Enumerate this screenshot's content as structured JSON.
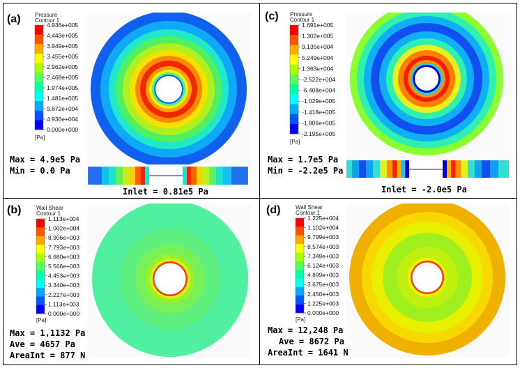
{
  "figure": {
    "panels": [
      {
        "label": "(a)",
        "legend_title": [
          "Pressure",
          "Contour 1"
        ],
        "legend_unit": "[Pa]",
        "legend_ticks": [
          "4.936e+005",
          "4.443e+005",
          "3.949e+005",
          "3.455e+005",
          "2.962e+005",
          "2.468e+005",
          "1.974e+005",
          "1.481e+005",
          "9.872e+004",
          "4.936e+004",
          "0.000e+000"
        ],
        "stats": [
          "Max = 4.9e5 Pa",
          "Min = 0.0 Pa"
        ],
        "inlet": "Inlet = 0.81e5 Pa"
      },
      {
        "label": "(c)",
        "legend_title": [
          "Pressure",
          "Contour 1"
        ],
        "legend_unit": "[Pa]",
        "legend_ticks": [
          "1.691e+005",
          "1.302e+005",
          "9.135e+004",
          "5.249e+004",
          "1.363e+004",
          "-2.522e+004",
          "-6.408e+004",
          "-1.029e+005",
          "-1.418e+005",
          "-1.806e+005",
          "-2.195e+005"
        ],
        "stats": [
          "Max = 1.7e5 Pa",
          "Min = -2.2e5 Pa"
        ],
        "inlet": "Inlet = -2.0e5 Pa"
      },
      {
        "label": "(b)",
        "legend_title": [
          "Wall Shear",
          "Contour 1"
        ],
        "legend_unit": "[Pa]",
        "legend_ticks": [
          "1.113e+004",
          "1.002e+004",
          "8.906e+003",
          "7.793e+003",
          "6.680e+003",
          "5.566e+003",
          "4.453e+003",
          "3.340e+003",
          "2.227e+003",
          "1.113e+003",
          "0.000e+000"
        ],
        "stats": [
          "Max = 1,1132 Pa",
          "Ave = 4657 Pa",
          "AreaInt = 877 N"
        ],
        "inlet": ""
      },
      {
        "label": "(d)",
        "legend_title": [
          "Wall Shear",
          "Contour 1"
        ],
        "legend_unit": "[Pa]",
        "legend_ticks": [
          "1.225e+004",
          "1.102e+004",
          "9.799e+003",
          "8.574e+003",
          "7.349e+003",
          "6.124e+003",
          "4.899e+003",
          "3.675e+003",
          "2.450e+003",
          "1.225e+003",
          "0.000e+000"
        ],
        "stats": [
          "Max = 12,248 Pa",
          "Ave = 8672 Pa",
          "AreaInt = 1641 N"
        ],
        "inlet": ""
      }
    ],
    "colormap": [
      "#ff0000",
      "#ff5500",
      "#ffaa00",
      "#ffff00",
      "#aaff00",
      "#55ff55",
      "#00ffaa",
      "#00ffff",
      "#00aaff",
      "#0055ff",
      "#0000ff"
    ]
  }
}
